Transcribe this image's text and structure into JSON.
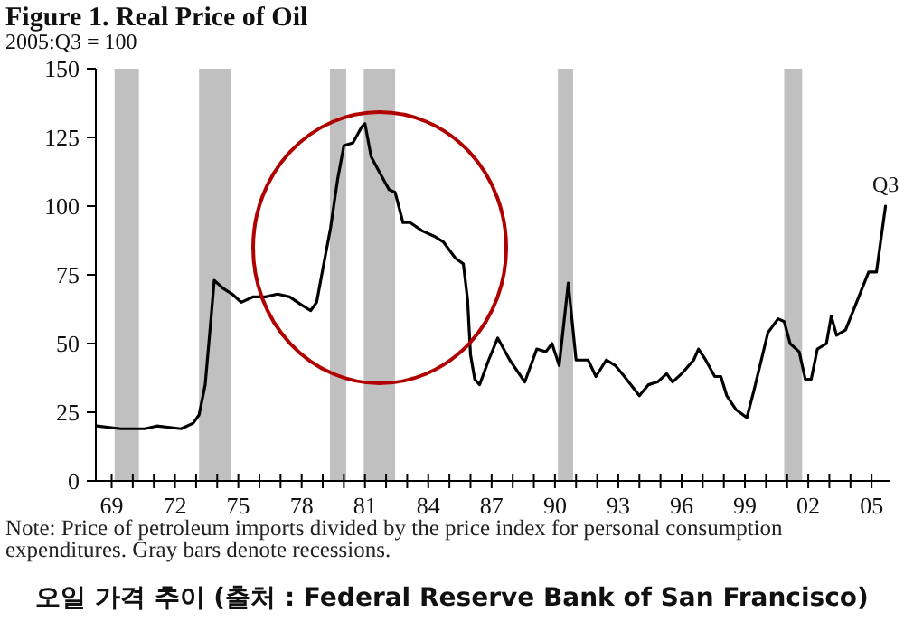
{
  "chart_data": {
    "type": "line",
    "title": "Figure 1. Real Price of Oil",
    "subtitle": "2005:Q3 = 100",
    "x": [
      1968.29,
      1969.43,
      1970.57,
      1971.14,
      1972.29,
      1972.86,
      1973.14,
      1973.43,
      1973.66,
      1973.86,
      1974.29,
      1974.71,
      1975.14,
      1975.71,
      1976.29,
      1976.86,
      1977.43,
      1978.0,
      1978.43,
      1978.71,
      1979.0,
      1979.37,
      1979.71,
      1980.0,
      1980.43,
      1980.86,
      1981.0,
      1981.29,
      1981.71,
      1982.14,
      1982.43,
      1982.8,
      1983.14,
      1983.71,
      1984.29,
      1984.71,
      1985.29,
      1985.66,
      1985.86,
      1986.0,
      1986.2,
      1986.43,
      1986.86,
      1987.29,
      1987.86,
      1988.57,
      1989.14,
      1989.57,
      1989.86,
      1990.2,
      1990.63,
      1991.0,
      1991.57,
      1991.94,
      1992.43,
      1992.86,
      1993.29,
      1994.0,
      1994.43,
      1994.86,
      1995.29,
      1995.57,
      1996.0,
      1996.57,
      1996.8,
      1997.14,
      1997.57,
      1997.86,
      1998.14,
      1998.57,
      1999.09,
      1999.43,
      2000.09,
      2000.57,
      2000.86,
      2001.14,
      2001.57,
      2001.86,
      2002.14,
      2002.43,
      2002.86,
      2003.09,
      2003.34,
      2003.77,
      2004.29,
      2004.86,
      2005.23,
      2005.66
    ],
    "values": [
      20,
      19,
      19,
      20,
      19,
      21,
      24,
      35,
      55,
      73,
      70,
      68,
      65,
      67,
      67,
      68,
      67,
      64,
      62,
      65,
      77,
      92,
      110,
      122,
      123,
      129,
      130,
      118,
      112,
      106,
      105,
      94,
      94,
      91,
      89,
      87,
      81,
      79,
      66,
      46,
      37,
      35,
      44,
      52,
      44,
      36,
      48,
      47,
      50,
      42,
      72,
      44,
      44,
      38,
      44,
      42,
      38,
      31,
      35,
      36,
      39,
      36,
      39,
      44,
      48,
      44,
      38,
      38,
      31,
      26,
      23,
      33,
      54,
      59,
      58,
      50,
      47,
      37,
      37,
      48,
      50,
      60,
      53,
      55,
      65,
      76,
      76,
      100
    ],
    "color": "#000000",
    "xlim": [
      1968.25,
      2005.85
    ],
    "xticks": [
      {
        "value": 1969,
        "label": "69"
      },
      {
        "value": 1970,
        "label": null
      },
      {
        "value": 1971,
        "label": null
      },
      {
        "value": 1972,
        "label": "72"
      },
      {
        "value": 1973,
        "label": null
      },
      {
        "value": 1974,
        "label": null
      },
      {
        "value": 1975,
        "label": "75"
      },
      {
        "value": 1976,
        "label": null
      },
      {
        "value": 1977,
        "label": null
      },
      {
        "value": 1978,
        "label": "78"
      },
      {
        "value": 1979,
        "label": null
      },
      {
        "value": 1980,
        "label": null
      },
      {
        "value": 1981,
        "label": "81"
      },
      {
        "value": 1982,
        "label": null
      },
      {
        "value": 1983,
        "label": null
      },
      {
        "value": 1984,
        "label": "84"
      },
      {
        "value": 1985,
        "label": null
      },
      {
        "value": 1986,
        "label": null
      },
      {
        "value": 1987,
        "label": "87"
      },
      {
        "value": 1988,
        "label": null
      },
      {
        "value": 1989,
        "label": null
      },
      {
        "value": 1990,
        "label": "90"
      },
      {
        "value": 1991,
        "label": null
      },
      {
        "value": 1992,
        "label": null
      },
      {
        "value": 1993,
        "label": "93"
      },
      {
        "value": 1994,
        "label": null
      },
      {
        "value": 1995,
        "label": null
      },
      {
        "value": 1996,
        "label": "96"
      },
      {
        "value": 1997,
        "label": null
      },
      {
        "value": 1998,
        "label": null
      },
      {
        "value": 1999,
        "label": "99"
      },
      {
        "value": 2000,
        "label": null
      },
      {
        "value": 2001,
        "label": null
      },
      {
        "value": 2002,
        "label": "02"
      },
      {
        "value": 2003,
        "label": null
      },
      {
        "value": 2004,
        "label": null
      },
      {
        "value": 2005,
        "label": "05"
      }
    ],
    "ylim": [
      0,
      150
    ],
    "yticks": [
      0,
      25,
      50,
      75,
      100,
      125,
      150
    ],
    "bands": [
      {
        "axis": "x",
        "from": 1969.14,
        "to": 1970.29,
        "color": "#c0c0c0"
      },
      {
        "axis": "x",
        "from": 1973.14,
        "to": 1974.66,
        "color": "#c0c0c0"
      },
      {
        "axis": "x",
        "from": 1979.34,
        "to": 1980.11,
        "color": "#c0c0c0"
      },
      {
        "axis": "x",
        "from": 1980.94,
        "to": 1982.43,
        "color": "#c0c0c0"
      },
      {
        "axis": "x",
        "from": 1990.14,
        "to": 1990.86,
        "color": "#c0c0c0"
      },
      {
        "axis": "x",
        "from": 2000.86,
        "to": 2001.71,
        "color": "#c0c0c0"
      }
    ],
    "annotations": [
      {
        "text": "Q3",
        "x": 2005.66,
        "y": 100
      },
      "Note: Price of petroleum imports divided by the price index for personal consumption expenditures. Gray bars denote recessions.",
      "오일 가격 추이 (출처 : Federal Reserve Bank of San Francisco)"
    ]
  }
}
